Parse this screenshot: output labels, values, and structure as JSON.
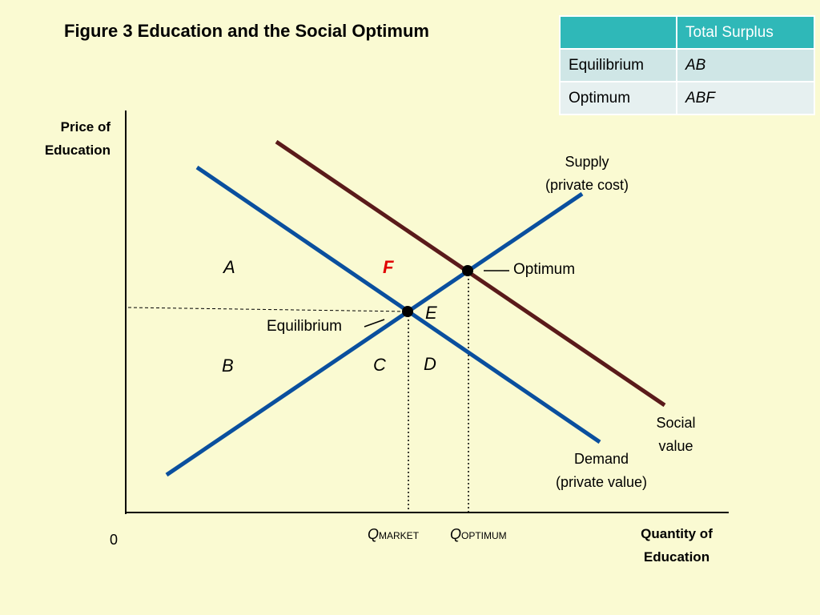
{
  "title": "Figure 3 Education and the Social Optimum",
  "table": {
    "header": [
      "",
      "Total Surplus"
    ],
    "rows": [
      {
        "label": "Equilibrium",
        "value": "AB"
      },
      {
        "label": "Optimum",
        "value": "ABF"
      }
    ]
  },
  "axes": {
    "y_label_line1": "Price of",
    "y_label_line2": "Education",
    "x_label_line1": "Quantity of",
    "x_label_line2": "Education",
    "origin": "0"
  },
  "curves": {
    "supply_line1": "Supply",
    "supply_line2": "(private cost)",
    "demand_line1": "Demand",
    "demand_line2": "(private value)",
    "social_line1": "Social",
    "social_line2": "value"
  },
  "points": {
    "optimum": "Optimum",
    "equilibrium": "Equilibrium"
  },
  "areas": {
    "A": "A",
    "B": "B",
    "C": "C",
    "D": "D",
    "E": "E",
    "F": "F"
  },
  "ticks": {
    "q_market_main": "Q",
    "q_market_sub": "MARKET",
    "q_optimum_main": "Q",
    "q_optimum_sub": "OPTIMUM"
  },
  "colors": {
    "supply_demand": "#0a4f9e",
    "social_value": "#5a1a1a",
    "area_F": "#e00000",
    "table_header": "#2fb8b8",
    "background": "#fafad2"
  }
}
